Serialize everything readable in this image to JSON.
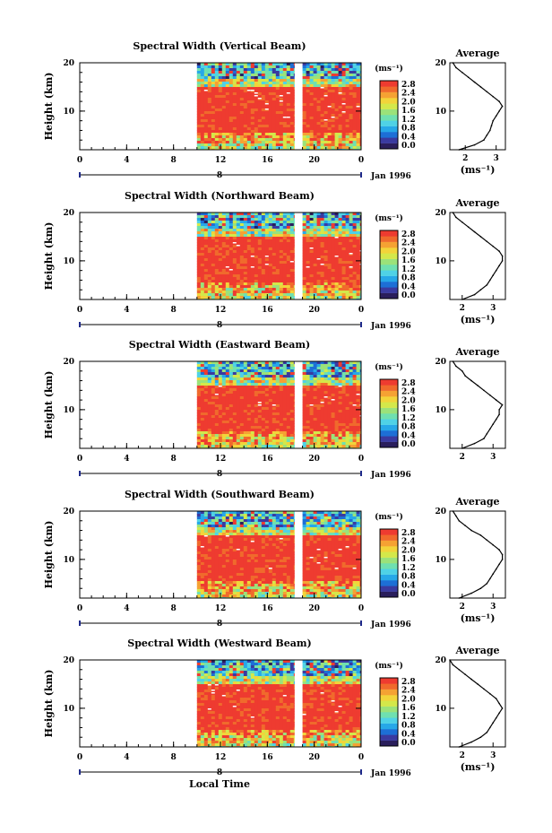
{
  "chart_data": [
    {
      "type": "heatmap",
      "title": "Spectral Width (Vertical Beam)",
      "ylabel": "Height (km)",
      "xticks": [
        "0",
        "4",
        "8",
        "12",
        "16",
        "20",
        "0"
      ],
      "date_marker": "8",
      "date_label": "Jan 1996",
      "xlim": [
        0,
        24
      ],
      "ylim": [
        2,
        20
      ],
      "yticks": [
        "20",
        "10"
      ],
      "colorbar": {
        "unit": "(ms⁻¹)",
        "ticks": [
          "2.8",
          "2.4",
          "2.0",
          "1.6",
          "1.2",
          "0.8",
          "0.4",
          "0.0"
        ],
        "range": [
          0.0,
          2.8
        ]
      },
      "profile": {
        "title": "Average",
        "xlabel": "(ms⁻¹)",
        "xticks": [
          "2",
          "3"
        ],
        "xlim": [
          1.5,
          3.3
        ],
        "heights": [
          2,
          3,
          4,
          5,
          6,
          7,
          8,
          9,
          10,
          11,
          12,
          13,
          14,
          15,
          16,
          17,
          18,
          19,
          20
        ],
        "values": [
          1.8,
          2.3,
          2.6,
          2.7,
          2.8,
          2.85,
          2.9,
          3.0,
          3.1,
          3.2,
          3.1,
          2.9,
          2.7,
          2.5,
          2.3,
          2.1,
          1.9,
          1.7,
          1.6
        ]
      },
      "data_coverage_hours": [
        [
          10,
          18.3
        ],
        [
          19,
          24
        ]
      ]
    },
    {
      "type": "heatmap",
      "title": "Spectral Width (Northward Beam)",
      "ylabel": "Height (km)",
      "xticks": [
        "0",
        "4",
        "8",
        "12",
        "16",
        "20",
        "0"
      ],
      "date_marker": "8",
      "date_label": "Jan 1996",
      "xlim": [
        0,
        24
      ],
      "ylim": [
        2,
        20
      ],
      "yticks": [
        "20",
        "10"
      ],
      "colorbar": {
        "unit": "(ms⁻¹)",
        "ticks": [
          "2.8",
          "2.4",
          "2.0",
          "1.6",
          "1.2",
          "0.8",
          "0.4",
          "0.0"
        ],
        "range": [
          0.0,
          2.8
        ]
      },
      "profile": {
        "title": "Average",
        "xlabel": "(ms⁻¹)",
        "xticks": [
          "2",
          "3"
        ],
        "xlim": [
          1.6,
          3.4
        ],
        "heights": [
          2,
          3,
          4,
          5,
          6,
          7,
          8,
          9,
          10,
          11,
          12,
          13,
          14,
          15,
          16,
          17,
          18,
          19,
          20
        ],
        "values": [
          2.0,
          2.4,
          2.6,
          2.8,
          2.9,
          3.0,
          3.1,
          3.2,
          3.3,
          3.3,
          3.2,
          3.0,
          2.8,
          2.6,
          2.4,
          2.2,
          2.0,
          1.8,
          1.7
        ]
      },
      "data_coverage_hours": [
        [
          10,
          18.3
        ],
        [
          19,
          24
        ]
      ]
    },
    {
      "type": "heatmap",
      "title": "Spectral Width (Eastward Beam)",
      "ylabel": "Height (km)",
      "xticks": [
        "0",
        "4",
        "8",
        "12",
        "16",
        "20",
        "0"
      ],
      "date_marker": "8",
      "date_label": "Jan 1996",
      "xlim": [
        0,
        24
      ],
      "ylim": [
        2,
        20
      ],
      "yticks": [
        "20",
        "10"
      ],
      "colorbar": {
        "unit": "(ms⁻¹)",
        "ticks": [
          "2.8",
          "2.4",
          "2.0",
          "1.6",
          "1.2",
          "0.8",
          "0.4",
          "0.0"
        ],
        "range": [
          0.0,
          2.8
        ]
      },
      "profile": {
        "title": "Average",
        "xlabel": "",
        "xticks": [
          "2",
          "3"
        ],
        "xlim": [
          1.6,
          3.4
        ],
        "heights": [
          2,
          3,
          4,
          5,
          6,
          7,
          8,
          9,
          10,
          11,
          12,
          13,
          14,
          15,
          16,
          17,
          18,
          19,
          20
        ],
        "values": [
          2.0,
          2.4,
          2.7,
          2.8,
          2.9,
          3.0,
          3.1,
          3.2,
          3.2,
          3.3,
          3.1,
          2.9,
          2.7,
          2.5,
          2.3,
          2.1,
          2.0,
          1.8,
          1.7
        ]
      },
      "data_coverage_hours": [
        [
          10,
          18.3
        ],
        [
          19,
          24
        ]
      ]
    },
    {
      "type": "heatmap",
      "title": "Spectral Width (Southward Beam)",
      "ylabel": "Height (km)",
      "xticks": [
        "0",
        "4",
        "8",
        "12",
        "16",
        "20",
        "0"
      ],
      "date_marker": "8",
      "date_label": "Jan 1996",
      "xlim": [
        0,
        24
      ],
      "ylim": [
        2,
        20
      ],
      "yticks": [
        "20",
        "10"
      ],
      "colorbar": {
        "unit": "(ms⁻¹)",
        "ticks": [
          "2.8",
          "2.4",
          "2.0",
          "1.6",
          "1.2",
          "0.8",
          "0.4",
          "0.0"
        ],
        "range": [
          0.0,
          2.8
        ]
      },
      "profile": {
        "title": "Average",
        "xlabel": "(ms⁻¹)",
        "xticks": [
          "2",
          "3"
        ],
        "xlim": [
          1.6,
          3.4
        ],
        "heights": [
          2,
          3,
          4,
          5,
          6,
          7,
          8,
          9,
          10,
          11,
          12,
          13,
          14,
          15,
          16,
          17,
          18,
          19,
          20
        ],
        "values": [
          1.9,
          2.3,
          2.6,
          2.8,
          2.9,
          3.0,
          3.1,
          3.2,
          3.3,
          3.3,
          3.2,
          3.0,
          2.8,
          2.6,
          2.3,
          2.1,
          1.9,
          1.8,
          1.7
        ]
      },
      "data_coverage_hours": [
        [
          10,
          18.3
        ],
        [
          19,
          24
        ]
      ]
    },
    {
      "type": "heatmap",
      "title": "Spectral Width (Westward Beam)",
      "ylabel": "Height (km)",
      "xticks": [
        "0",
        "4",
        "8",
        "12",
        "16",
        "20",
        "0"
      ],
      "date_marker": "8",
      "date_label": "Jan 1996",
      "xlim": [
        0,
        24
      ],
      "ylim": [
        2,
        20
      ],
      "yticks": [
        "20",
        "10"
      ],
      "colorbar": {
        "unit": "(ms⁻¹)",
        "ticks": [
          "2.8",
          "2.4",
          "2.0",
          "1.6",
          "1.2",
          "0.8",
          "0.4",
          "0.0"
        ],
        "range": [
          0.0,
          2.8
        ]
      },
      "profile": {
        "title": "Average",
        "xlabel": "(ms⁻¹)",
        "xticks": [
          "2",
          "3"
        ],
        "xlim": [
          1.6,
          3.4
        ],
        "heights": [
          2,
          3,
          4,
          5,
          6,
          7,
          8,
          9,
          10,
          11,
          12,
          13,
          14,
          15,
          16,
          17,
          18,
          19,
          20
        ],
        "values": [
          1.9,
          2.3,
          2.6,
          2.8,
          2.9,
          3.0,
          3.1,
          3.2,
          3.3,
          3.2,
          3.1,
          2.9,
          2.7,
          2.5,
          2.3,
          2.1,
          1.9,
          1.7,
          1.6
        ]
      },
      "data_coverage_hours": [
        [
          10,
          18.3
        ],
        [
          19,
          24
        ]
      ]
    }
  ],
  "xlabel": "Local Time",
  "colors": {
    "colormap": [
      "#2a1e5c",
      "#3a3aa0",
      "#1d6fd6",
      "#27a8e8",
      "#4fd2e6",
      "#6fe0b0",
      "#9be27a",
      "#d4e84a",
      "#f2d43a",
      "#f5a233",
      "#f06a2c",
      "#ee3b30"
    ],
    "axis": "#000000",
    "date_axis": "#1f2a8a"
  }
}
